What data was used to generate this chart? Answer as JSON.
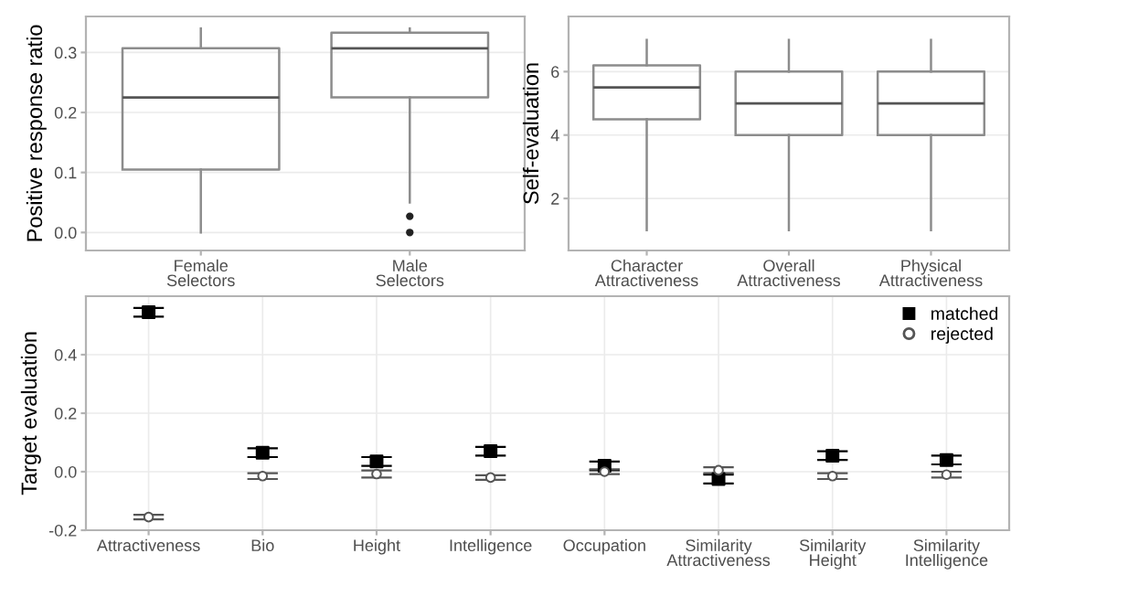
{
  "chart_data": [
    {
      "type": "box",
      "ylabel": "Positive response ratio",
      "categories": [
        "Female\nSelectors",
        "Male\nSelectors"
      ],
      "ylim": [
        -0.03,
        0.36
      ],
      "yticks": [
        {
          "value": 0,
          "label": "0.0"
        },
        0.1,
        0.2,
        0.3
      ],
      "grid": "y",
      "color": "#8c8c8c",
      "boxes": [
        {
          "low": 0,
          "q1": 0.105,
          "median": 0.225,
          "q3": 0.307,
          "high": 0.34
        },
        {
          "low": 0.05,
          "q1": 0.225,
          "median": 0.307,
          "q3": 0.333,
          "high": 0.34,
          "outliers": [
            0.027,
            0.0
          ]
        }
      ]
    },
    {
      "type": "box",
      "ylabel": "Self-evaluation",
      "categories": [
        "Character\nAttractiveness",
        "Overall\nAttractiveness",
        "Physical\nAttractiveness"
      ],
      "ylim": [
        0.36,
        7.74
      ],
      "yticks": [
        2,
        4,
        6
      ],
      "grid": "y",
      "color": "#8c8c8c",
      "boxes": [
        {
          "low": 1,
          "q1": 4.5,
          "median": 5.5,
          "q3": 6.2,
          "high": 7
        },
        {
          "low": 1,
          "q1": 4,
          "median": 5,
          "q3": 6,
          "high": 7
        },
        {
          "low": 1,
          "q1": 4,
          "median": 5,
          "q3": 6,
          "high": 7
        }
      ]
    },
    {
      "type": "scatter",
      "ylabel": "Target evaluation",
      "categories": [
        "Attractiveness",
        "Bio",
        "Height",
        "Intelligence",
        "Occupation",
        "Similarity\nAttractiveness",
        "Similarity\nHeight",
        "Similarity\nIntelligence"
      ],
      "ylim": [
        -0.2,
        0.6
      ],
      "yticks": [
        -0.2,
        {
          "value": 0,
          "label": "0.0"
        },
        0.2,
        0.4
      ],
      "grid": true,
      "legend": "top right",
      "series": [
        {
          "name": "matched",
          "color": "#000000",
          "marker": "square",
          "values": [
            0.545,
            0.065,
            0.035,
            0.07,
            0.02,
            -0.025,
            0.055,
            0.04
          ],
          "errors": [
            0.015,
            0.015,
            0.015,
            0.015,
            0.015,
            0.015,
            0.015,
            0.015
          ]
        },
        {
          "name": "rejected",
          "color": "#555555",
          "marker": "circle",
          "values": [
            -0.155,
            -0.015,
            -0.008,
            -0.02,
            0.0,
            0.005,
            -0.015,
            -0.01
          ],
          "errors": [
            0.008,
            0.01,
            0.012,
            0.008,
            0.008,
            0.01,
            0.01,
            0.01
          ]
        }
      ]
    }
  ]
}
